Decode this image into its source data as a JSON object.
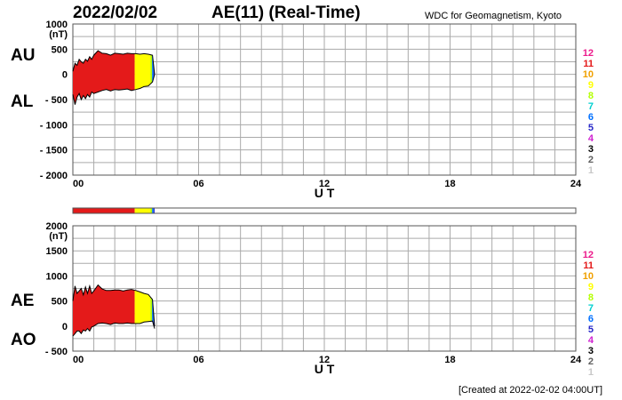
{
  "header": {
    "date": "2022/02/02",
    "title": "AE(11) (Real-Time)",
    "source": "WDC for Geomagnetism, Kyoto"
  },
  "footer": {
    "created": "[Created at 2022-02-02 04:00UT]"
  },
  "colors": {
    "station_scale": [
      "#ec1c8c",
      "#e41a1a",
      "#f0a000",
      "#ffff00",
      "#b4ff00",
      "#00d0d0",
      "#0070ff",
      "#2828c8",
      "#d020d0",
      "#000000",
      "#606060",
      "#c8c8c8"
    ]
  },
  "chart_data": [
    {
      "type": "area",
      "name": "AU/AL",
      "row_labels": [
        "AU",
        "AL"
      ],
      "ylabel": "(nT)",
      "ylim": [
        -2000,
        1000
      ],
      "y_ticks": [
        1000,
        500,
        0,
        -500,
        -1000,
        -1500,
        -2000
      ],
      "y_tick_labels": [
        "1000",
        "500",
        "0",
        "- 500",
        "- 1000",
        "- 1500",
        "- 2000"
      ],
      "xlabel": "U T",
      "xlim": [
        0,
        24
      ],
      "x_ticks": [
        0,
        6,
        12,
        18,
        24
      ],
      "x_tick_labels": [
        "00",
        "06",
        "12",
        "18",
        "24"
      ],
      "grid": true,
      "station_count_legend": [
        "12",
        "11",
        "10",
        "9",
        "8",
        "7",
        "6",
        "5",
        "4",
        "3",
        "2",
        "1"
      ],
      "x": [
        0.0,
        0.1,
        0.2,
        0.3,
        0.4,
        0.5,
        0.6,
        0.7,
        0.8,
        0.9,
        1.0,
        1.2,
        1.4,
        1.6,
        1.8,
        2.0,
        2.2,
        2.4,
        2.6,
        2.8,
        3.0,
        3.2,
        3.4,
        3.6,
        3.8,
        3.9
      ],
      "series": [
        {
          "values": [
            60,
            220,
            180,
            300,
            250,
            220,
            300,
            260,
            350,
            300,
            380,
            470,
            420,
            410,
            380,
            420,
            410,
            400,
            420,
            410,
            410,
            400,
            410,
            400,
            380,
            0
          ]
        },
        {
          "values": [
            -400,
            -600,
            -450,
            -380,
            -500,
            -420,
            -480,
            -400,
            -450,
            -350,
            -380,
            -350,
            -320,
            -300,
            -330,
            -300,
            -310,
            -300,
            -290,
            -320,
            -300,
            -280,
            -240,
            -230,
            -150,
            0
          ]
        }
      ],
      "station_count_segments": [
        {
          "start": 0.0,
          "end": 2.95,
          "count": 11
        },
        {
          "start": 2.95,
          "end": 3.7,
          "count": 9
        },
        {
          "start": 3.7,
          "end": 3.78,
          "count": 8
        },
        {
          "start": 3.78,
          "end": 3.85,
          "count": 6
        },
        {
          "start": 3.85,
          "end": 3.9,
          "count": 5
        }
      ]
    },
    {
      "type": "area",
      "name": "AE/AO",
      "row_labels": [
        "AE",
        "AO"
      ],
      "ylabel": "(nT)",
      "ylim": [
        -500,
        2000
      ],
      "y_ticks": [
        2000,
        1500,
        1000,
        500,
        0,
        -500
      ],
      "y_tick_labels": [
        "2000",
        "1500",
        "1000",
        "500",
        "0",
        "- 500"
      ],
      "xlabel": "U T",
      "xlim": [
        0,
        24
      ],
      "x_ticks": [
        0,
        6,
        12,
        18,
        24
      ],
      "x_tick_labels": [
        "00",
        "06",
        "12",
        "18",
        "24"
      ],
      "grid": true,
      "station_count_legend": [
        "12",
        "11",
        "10",
        "9",
        "8",
        "7",
        "6",
        "5",
        "4",
        "3",
        "2",
        "1"
      ],
      "x": [
        0.0,
        0.1,
        0.2,
        0.3,
        0.4,
        0.5,
        0.6,
        0.7,
        0.8,
        0.9,
        1.0,
        1.2,
        1.4,
        1.6,
        1.8,
        2.0,
        2.2,
        2.4,
        2.6,
        2.8,
        3.0,
        3.2,
        3.4,
        3.6,
        3.8,
        3.9
      ],
      "series": [
        {
          "values": [
            500,
            800,
            650,
            700,
            750,
            620,
            780,
            650,
            800,
            650,
            700,
            820,
            740,
            710,
            710,
            720,
            720,
            700,
            720,
            730,
            710,
            680,
            650,
            630,
            530,
            0
          ]
        },
        {
          "values": [
            -200,
            -150,
            -100,
            -100,
            -150,
            -80,
            -100,
            -50,
            -100,
            -20,
            0,
            50,
            60,
            50,
            30,
            60,
            50,
            50,
            60,
            50,
            50,
            50,
            80,
            90,
            100,
            -50
          ]
        }
      ],
      "station_count_segments": [
        {
          "start": 0.0,
          "end": 2.95,
          "count": 11
        },
        {
          "start": 2.95,
          "end": 3.7,
          "count": 9
        },
        {
          "start": 3.7,
          "end": 3.78,
          "count": 8
        },
        {
          "start": 3.78,
          "end": 3.85,
          "count": 6
        },
        {
          "start": 3.85,
          "end": 3.9,
          "count": 5
        }
      ]
    }
  ]
}
